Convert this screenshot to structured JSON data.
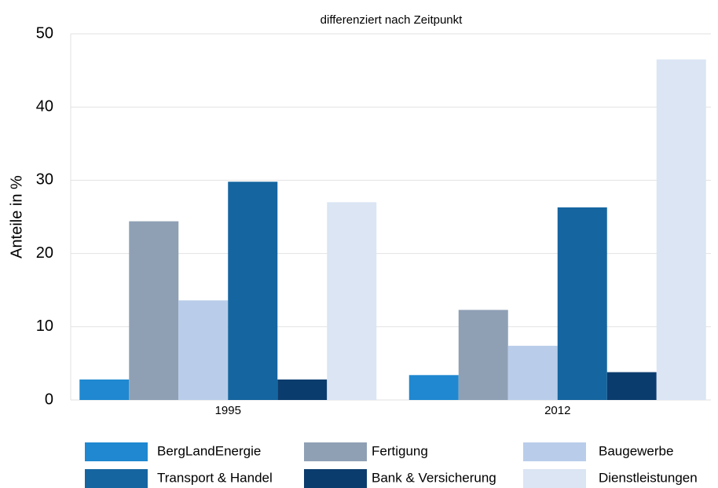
{
  "chart_data": {
    "type": "bar",
    "title": "differenziert nach Zeitpunkt",
    "y_label": "Anteile in %",
    "categories": [
      "1995",
      "2012"
    ],
    "series": [
      {
        "name": "BergLandEnergie",
        "color": "#1f88d0",
        "values": [
          2.8,
          3.4
        ]
      },
      {
        "name": "Fertigung",
        "color": "#8fa0b5",
        "values": [
          24.4,
          12.3
        ]
      },
      {
        "name": "Baugewerbe",
        "color": "#b9cdea",
        "values": [
          13.6,
          7.4
        ]
      },
      {
        "name": "Transport & Handel",
        "color": "#1565a0",
        "values": [
          29.8,
          26.3
        ]
      },
      {
        "name": "Bank & Versicherung",
        "color": "#0b3c6e",
        "values": [
          2.8,
          3.8
        ]
      },
      {
        "name": "Dienstleistungen",
        "color": "#dbe5f4",
        "values": [
          27.0,
          46.5
        ]
      }
    ],
    "ylim": [
      0,
      50
    ],
    "yticks": [
      0,
      10,
      20,
      30,
      40,
      50
    ],
    "grid": true
  }
}
